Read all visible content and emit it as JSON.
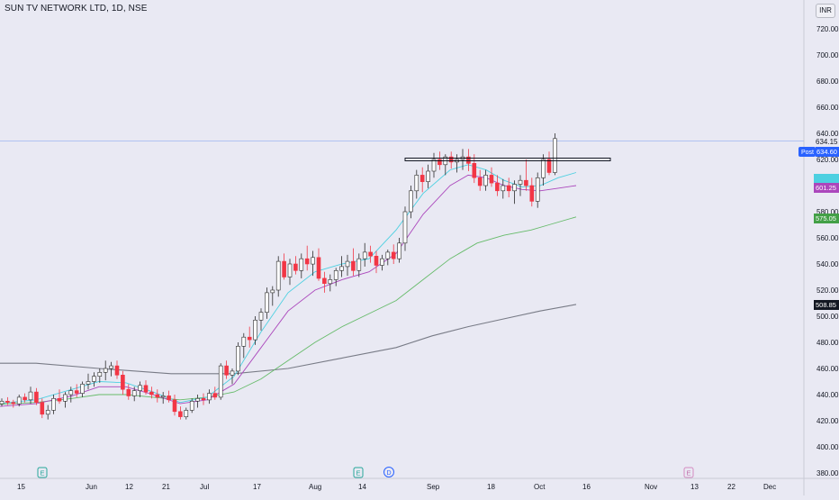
{
  "header": {
    "title": "SUN TV NETWORK LTD, 1D, NSE",
    "currency": "INR"
  },
  "colors": {
    "up": "#ffffff",
    "up_border": "#26a69a",
    "down": "#f23645",
    "sma_long": "#787b86",
    "ma_mid": "#66bb6a",
    "ma_short": "#ab47bc",
    "ma_fast": "#4dd0e1",
    "last_price": "#2962ff"
  },
  "price_axis": {
    "ticks": [
      "720.00",
      "700.00",
      "680.00",
      "660.00",
      "640.00",
      "620.00",
      "580.00",
      "560.00",
      "540.00",
      "520.00",
      "500.00",
      "480.00",
      "460.00",
      "440.00",
      "420.00",
      "400.00",
      "380.00"
    ],
    "labels": [
      {
        "text": "634.15",
        "style": "plain"
      },
      {
        "text": "Post",
        "style": "blue-tag"
      },
      {
        "text": "634.60",
        "style": "blue"
      },
      {
        "text": "601.25",
        "style": "purple"
      },
      {
        "text": "575.05",
        "style": "green"
      },
      {
        "text": "508.85",
        "style": "dark"
      }
    ]
  },
  "time_axis": {
    "ticks": [
      "15",
      "Jun",
      "12",
      "21",
      "Jul",
      "17",
      "Aug",
      "14",
      "Sep",
      "18",
      "Oct",
      "16",
      "Nov",
      "13",
      "22",
      "Dec"
    ]
  },
  "markers": [
    {
      "type": "earnings",
      "glyph": "E"
    },
    {
      "type": "earnings",
      "glyph": "E"
    },
    {
      "type": "dividend",
      "glyph": "D"
    },
    {
      "type": "earnings-future",
      "glyph": "E"
    }
  ],
  "chart_data": {
    "type": "candlestick",
    "title": "SUN TV NETWORK LTD, 1D, NSE",
    "ylim": [
      376,
      733
    ],
    "last_price": 634.15,
    "resistance_level": 620,
    "candles": [
      [
        433,
        437,
        431,
        435
      ],
      [
        435,
        438,
        432,
        434
      ],
      [
        434,
        436,
        430,
        433
      ],
      [
        433,
        440,
        431,
        438
      ],
      [
        438,
        441,
        434,
        436
      ],
      [
        436,
        446,
        433,
        442
      ],
      [
        442,
        445,
        432,
        434
      ],
      [
        434,
        437,
        422,
        425
      ],
      [
        425,
        432,
        421,
        428
      ],
      [
        428,
        440,
        425,
        437
      ],
      [
        437,
        444,
        433,
        435
      ],
      [
        435,
        442,
        430,
        440
      ],
      [
        440,
        446,
        434,
        443
      ],
      [
        443,
        448,
        438,
        441
      ],
      [
        441,
        450,
        438,
        448
      ],
      [
        448,
        456,
        444,
        450
      ],
      [
        450,
        457,
        446,
        454
      ],
      [
        454,
        460,
        449,
        457
      ],
      [
        457,
        466,
        451,
        460
      ],
      [
        460,
        465,
        454,
        462
      ],
      [
        462,
        466,
        452,
        455
      ],
      [
        455,
        458,
        440,
        444
      ],
      [
        444,
        448,
        436,
        439
      ],
      [
        439,
        446,
        435,
        443
      ],
      [
        443,
        450,
        438,
        447
      ],
      [
        447,
        451,
        440,
        442
      ],
      [
        442,
        446,
        437,
        440
      ],
      [
        440,
        444,
        434,
        438
      ],
      [
        438,
        442,
        433,
        439
      ],
      [
        439,
        443,
        434,
        436
      ],
      [
        436,
        440,
        424,
        427
      ],
      [
        427,
        431,
        421,
        423
      ],
      [
        423,
        430,
        421,
        428
      ],
      [
        428,
        437,
        426,
        435
      ],
      [
        435,
        440,
        430,
        437
      ],
      [
        437,
        441,
        432,
        436
      ],
      [
        436,
        444,
        433,
        441
      ],
      [
        441,
        446,
        436,
        438
      ],
      [
        438,
        464,
        436,
        462
      ],
      [
        462,
        466,
        452,
        455
      ],
      [
        455,
        460,
        448,
        458
      ],
      [
        458,
        480,
        455,
        477
      ],
      [
        477,
        487,
        468,
        484
      ],
      [
        484,
        492,
        476,
        482
      ],
      [
        482,
        500,
        478,
        497
      ],
      [
        497,
        506,
        489,
        503
      ],
      [
        503,
        522,
        498,
        518
      ],
      [
        518,
        523,
        508,
        520
      ],
      [
        520,
        546,
        515,
        542
      ],
      [
        542,
        548,
        528,
        530
      ],
      [
        530,
        544,
        524,
        540
      ],
      [
        540,
        546,
        532,
        535
      ],
      [
        535,
        548,
        529,
        544
      ],
      [
        544,
        554,
        535,
        540
      ],
      [
        540,
        550,
        531,
        545
      ],
      [
        545,
        552,
        527,
        529
      ],
      [
        529,
        534,
        518,
        525
      ],
      [
        525,
        532,
        519,
        528
      ],
      [
        528,
        537,
        523,
        535
      ],
      [
        535,
        546,
        530,
        538
      ],
      [
        538,
        547,
        531,
        542
      ],
      [
        542,
        552,
        531,
        535
      ],
      [
        535,
        548,
        530,
        544
      ],
      [
        544,
        556,
        538,
        549
      ],
      [
        549,
        554,
        541,
        546
      ],
      [
        546,
        550,
        533,
        539
      ],
      [
        539,
        547,
        535,
        544
      ],
      [
        544,
        551,
        539,
        549
      ],
      [
        549,
        555,
        540,
        544
      ],
      [
        544,
        560,
        541,
        556
      ],
      [
        556,
        584,
        550,
        580
      ],
      [
        580,
        600,
        575,
        596
      ],
      [
        596,
        612,
        590,
        608
      ],
      [
        608,
        614,
        595,
        603
      ],
      [
        603,
        616,
        598,
        611
      ],
      [
        611,
        625,
        606,
        620
      ],
      [
        620,
        626,
        612,
        616
      ],
      [
        616,
        624,
        608,
        622
      ],
      [
        622,
        626,
        613,
        618
      ],
      [
        618,
        624,
        610,
        620
      ],
      [
        620,
        628,
        612,
        622
      ],
      [
        622,
        628,
        611,
        617
      ],
      [
        617,
        624,
        602,
        606
      ],
      [
        606,
        612,
        596,
        600
      ],
      [
        600,
        612,
        596,
        608
      ],
      [
        608,
        614,
        599,
        602
      ],
      [
        602,
        608,
        592,
        596
      ],
      [
        596,
        605,
        590,
        600
      ],
      [
        600,
        606,
        591,
        596
      ],
      [
        596,
        604,
        586,
        601
      ],
      [
        601,
        608,
        592,
        604
      ],
      [
        604,
        620,
        596,
        600
      ],
      [
        600,
        606,
        584,
        588
      ],
      [
        588,
        610,
        583,
        606
      ],
      [
        606,
        624,
        600,
        620
      ],
      [
        620,
        626,
        608,
        610
      ],
      [
        610,
        640,
        608,
        636
      ]
    ],
    "sma_long": [
      [
        -20,
        464
      ],
      [
        40,
        464
      ],
      [
        110,
        460
      ],
      [
        190,
        456
      ],
      [
        260,
        456
      ],
      [
        320,
        460
      ],
      [
        380,
        468
      ],
      [
        440,
        476
      ],
      [
        480,
        485
      ],
      [
        520,
        492
      ],
      [
        560,
        498
      ],
      [
        600,
        504
      ],
      [
        640,
        509
      ]
    ],
    "ma_mid": [
      [
        -20,
        432
      ],
      [
        40,
        434
      ],
      [
        80,
        437
      ],
      [
        110,
        440
      ],
      [
        140,
        440
      ],
      [
        170,
        438
      ],
      [
        200,
        436
      ],
      [
        230,
        438
      ],
      [
        260,
        442
      ],
      [
        290,
        452
      ],
      [
        320,
        466
      ],
      [
        350,
        480
      ],
      [
        380,
        492
      ],
      [
        410,
        502
      ],
      [
        440,
        512
      ],
      [
        470,
        528
      ],
      [
        500,
        544
      ],
      [
        530,
        556
      ],
      [
        560,
        562
      ],
      [
        590,
        566
      ],
      [
        610,
        570
      ],
      [
        640,
        576
      ]
    ],
    "ma_short": [
      [
        -20,
        430
      ],
      [
        40,
        433
      ],
      [
        80,
        439
      ],
      [
        110,
        446
      ],
      [
        140,
        446
      ],
      [
        170,
        440
      ],
      [
        200,
        433
      ],
      [
        230,
        436
      ],
      [
        260,
        448
      ],
      [
        290,
        476
      ],
      [
        320,
        504
      ],
      [
        350,
        520
      ],
      [
        380,
        528
      ],
      [
        410,
        534
      ],
      [
        440,
        548
      ],
      [
        470,
        578
      ],
      [
        500,
        600
      ],
      [
        520,
        608
      ],
      [
        540,
        606
      ],
      [
        560,
        600
      ],
      [
        580,
        597
      ],
      [
        600,
        596
      ],
      [
        620,
        598
      ],
      [
        640,
        600
      ]
    ],
    "ma_fast": [
      [
        -20,
        432
      ],
      [
        40,
        436
      ],
      [
        80,
        444
      ],
      [
        110,
        450
      ],
      [
        140,
        449
      ],
      [
        170,
        442
      ],
      [
        200,
        434
      ],
      [
        230,
        438
      ],
      [
        260,
        454
      ],
      [
        290,
        488
      ],
      [
        320,
        518
      ],
      [
        350,
        534
      ],
      [
        380,
        540
      ],
      [
        410,
        544
      ],
      [
        440,
        566
      ],
      [
        470,
        594
      ],
      [
        500,
        612
      ],
      [
        520,
        616
      ],
      [
        540,
        612
      ],
      [
        560,
        604
      ],
      [
        580,
        599
      ],
      [
        600,
        600
      ],
      [
        620,
        606
      ],
      [
        640,
        610
      ]
    ]
  }
}
